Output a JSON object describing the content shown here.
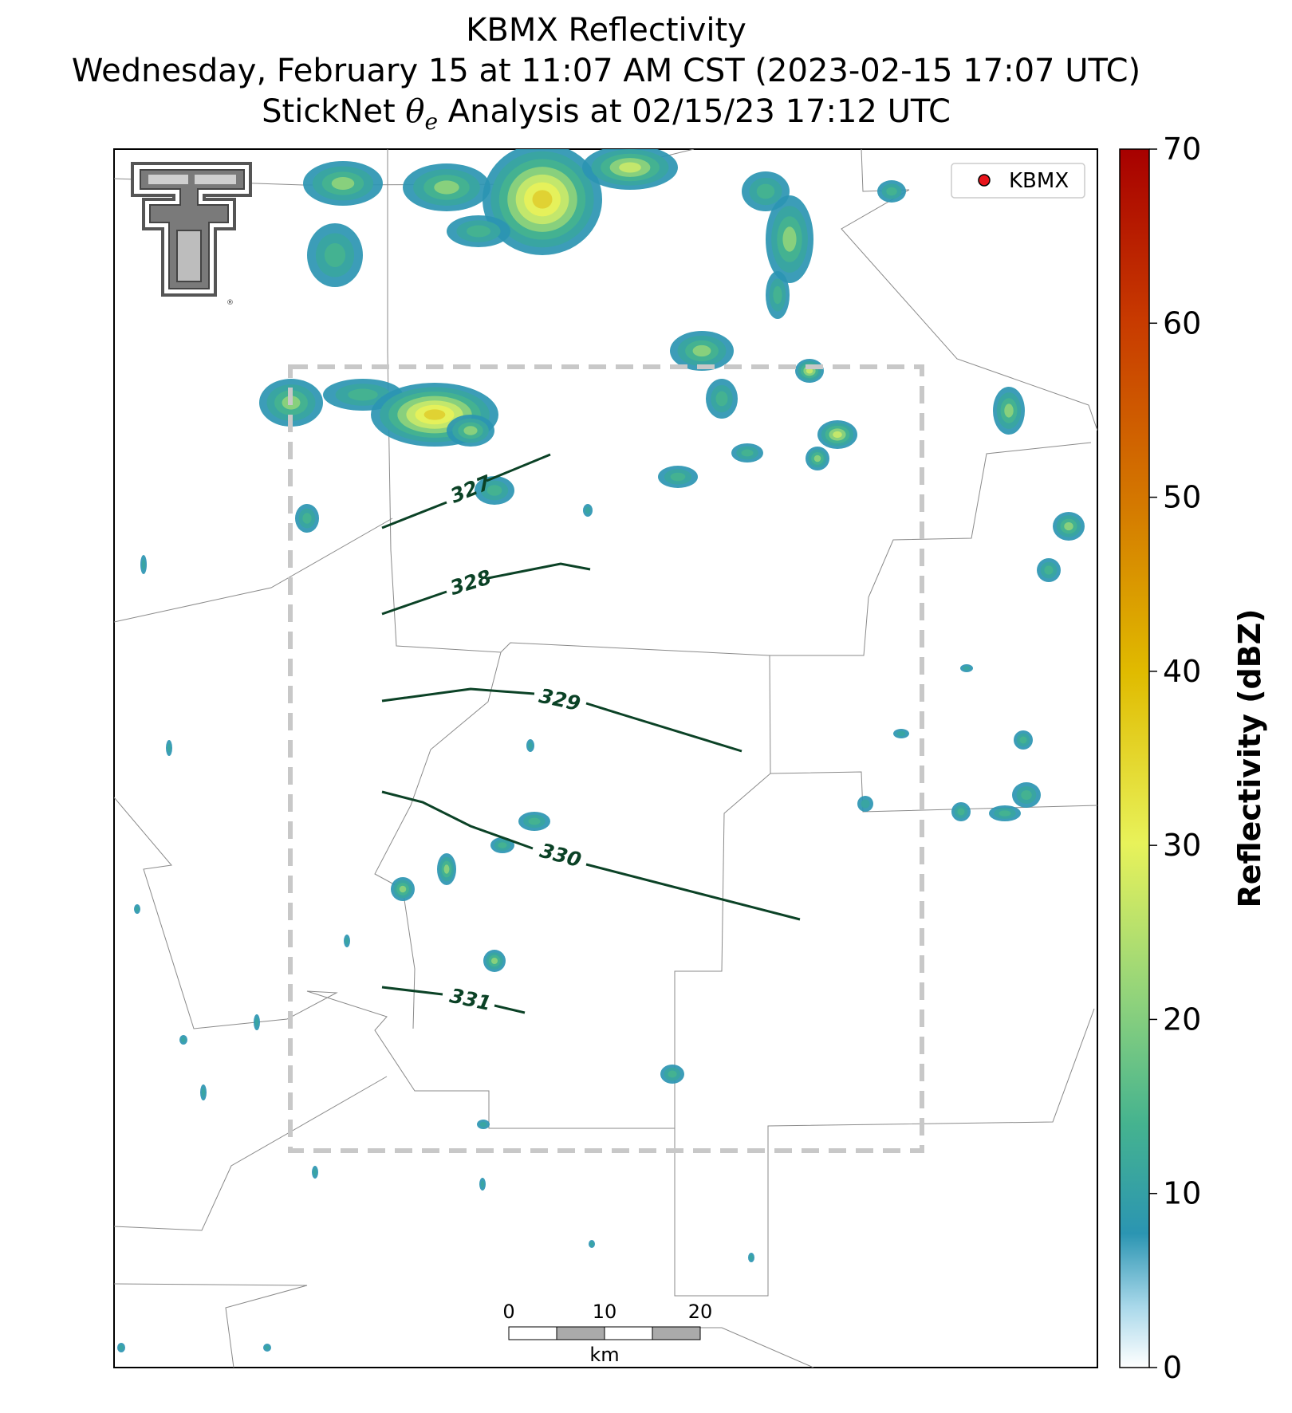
{
  "title": {
    "line1": "KBMX Reflectivity",
    "line2": "Wednesday, February 15 at 11:07 AM CST (2023-02-15 17:07 UTC)",
    "line3_prefix": "StickNet ",
    "line3_symbol": "θ",
    "line3_sub": "e",
    "line3_suffix": " Analysis at 02/15/23 17:12 UTC"
  },
  "legend": {
    "label": "KBMX",
    "marker_color": "#e8141b"
  },
  "colorbar": {
    "label": "Reflectivity (dBZ)",
    "ticks": [
      "0",
      "10",
      "20",
      "30",
      "40",
      "50",
      "60",
      "70"
    ],
    "range": [
      0,
      70
    ]
  },
  "scalebar": {
    "ticks": [
      "0",
      "10",
      "20"
    ],
    "unit": "km"
  },
  "contours": {
    "color": "#0b4226",
    "levels": [
      "327",
      "328",
      "329",
      "330",
      "331"
    ]
  },
  "logo": {
    "name": "Texas Tech Double T"
  },
  "colors": {
    "analysis_box": "#c8c8c8",
    "county_lines": "#8a8a8a"
  }
}
